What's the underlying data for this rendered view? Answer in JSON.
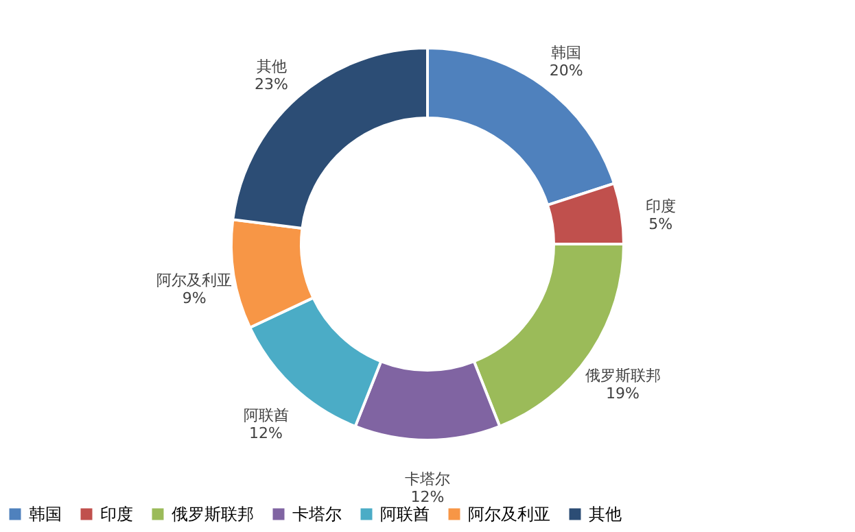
{
  "chart_data": {
    "type": "donut",
    "categories": [
      "韩国",
      "印度",
      "俄罗斯联邦",
      "卡塔尔",
      "阿联酋",
      "阿尔及利亚",
      "其他"
    ],
    "values": [
      20,
      5,
      19,
      12,
      12,
      9,
      23
    ],
    "value_labels": [
      "20%",
      "5%",
      "19%",
      "12%",
      "12%",
      "9%",
      "23%"
    ],
    "colors": [
      "#4f81bd",
      "#c0504d",
      "#9bbb59",
      "#8064a2",
      "#4bacc6",
      "#f79646",
      "#2c4d75"
    ],
    "legend": "bottom"
  }
}
